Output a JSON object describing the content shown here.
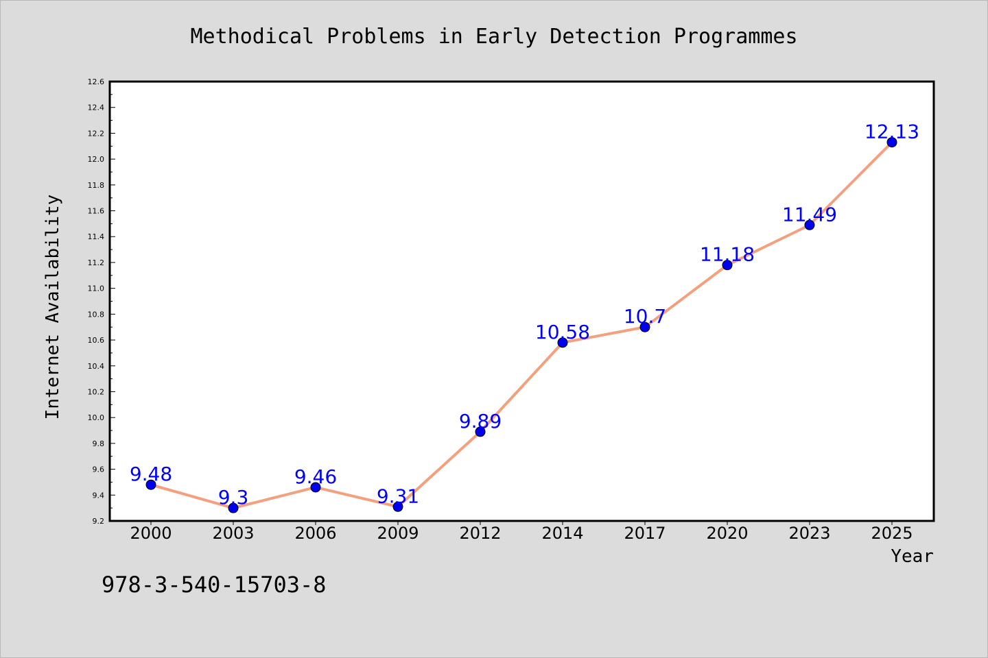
{
  "chart_data": {
    "type": "line",
    "title": "Methodical Problems in Early Detection Programmes",
    "xlabel": "Year",
    "ylabel": "Internet Availability",
    "categories": [
      "2000",
      "2003",
      "2006",
      "2009",
      "2012",
      "2014",
      "2017",
      "2020",
      "2023",
      "2025"
    ],
    "values": [
      9.48,
      9.3,
      9.46,
      9.31,
      9.89,
      10.58,
      10.7,
      11.18,
      11.49,
      12.13
    ],
    "data_labels": [
      "9.48",
      "9.3",
      "9.46",
      "9.31",
      "9.89",
      "10.58",
      "10.7",
      "11.18",
      "11.49",
      "12.13"
    ],
    "ylim": [
      9.2,
      12.6
    ],
    "yticks": [
      "9.2",
      "9.4",
      "9.6",
      "9.8",
      "10.0",
      "10.2",
      "10.4",
      "10.6",
      "10.8",
      "11.0",
      "11.2",
      "11.4",
      "11.6",
      "11.8",
      "12.0",
      "12.2",
      "12.4",
      "12.6"
    ],
    "grid": false,
    "legend": "none",
    "line_color": "#f4a07f",
    "marker_color": "#0000ee",
    "label_color": "#0000ff",
    "background_color": "#dcdcdc",
    "plot_background": "#ffffff"
  },
  "footer": {
    "isbn": "978-3-540-15703-8"
  }
}
